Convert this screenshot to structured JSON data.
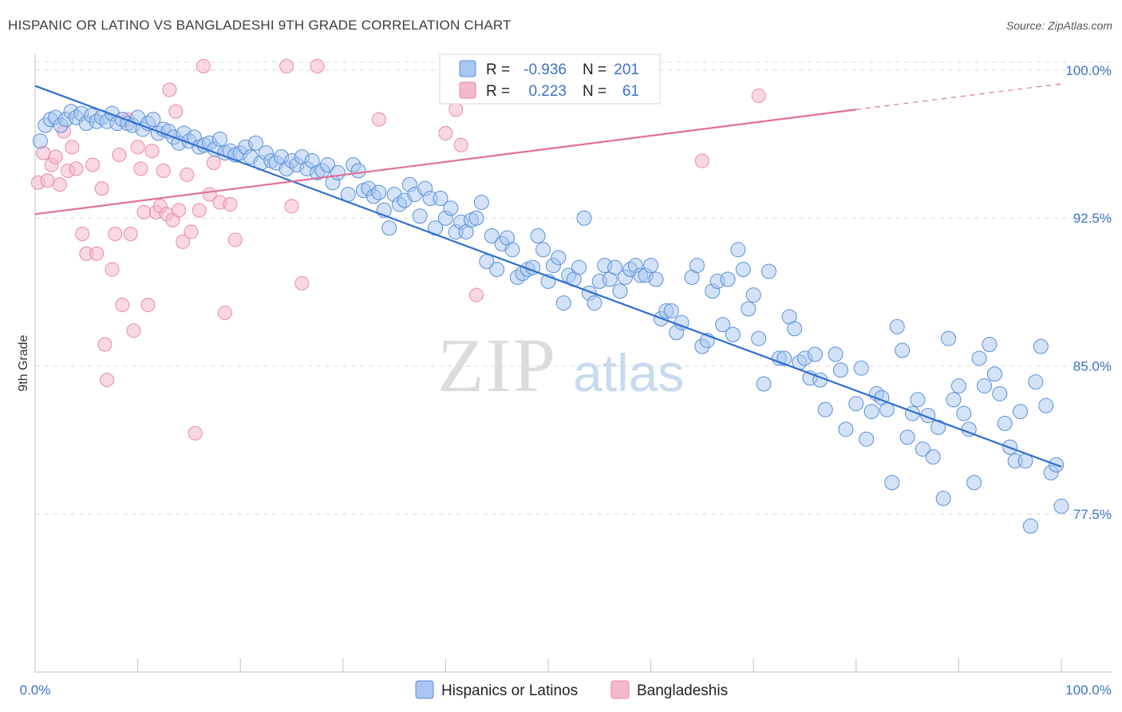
{
  "title": "HISPANIC OR LATINO VS BANGLADESHI 9TH GRADE CORRELATION CHART",
  "source": "Source: ZipAtlas.com",
  "watermark": {
    "zip": "ZIP",
    "atlas": "atlas"
  },
  "colors": {
    "blue_fill": "#a8c6f0",
    "blue_stroke": "#5a8fd8",
    "blue_line": "#2f6fd1",
    "pink_fill": "#f5b8cc",
    "pink_stroke": "#e68aa8",
    "pink_line": "#e0709a",
    "axis_text": "#3e72c8",
    "grid": "#d9d9d9"
  },
  "legend": {
    "rows": [
      {
        "r_label": "R =",
        "r_value": "-0.936",
        "n_label": "N =",
        "n_value": "201"
      },
      {
        "r_label": "R =",
        "r_value": "0.223",
        "n_label": "N =",
        "n_value": "61"
      }
    ]
  },
  "bottom_legend": [
    "Hispanics or Latinos",
    "Bangladeshis"
  ],
  "chart_data": {
    "type": "scatter",
    "title": "HISPANIC OR LATINO VS BANGLADESHI 9TH GRADE CORRELATION CHART",
    "xlabel": "",
    "ylabel": "9th Grade",
    "x_ticks": [
      "0.0%",
      "100.0%"
    ],
    "y_ticks": [
      "100.0%",
      "92.5%",
      "85.0%",
      "77.5%"
    ],
    "y_tick_values": [
      100.0,
      92.5,
      85.0,
      77.5
    ],
    "xlim": [
      0,
      100
    ],
    "ylim": [
      69.5,
      100.8
    ],
    "grid": true,
    "legend_position": "top-center",
    "series": [
      {
        "name": "Hispanics or Latinos",
        "trend": {
          "x": [
            0,
            100
          ],
          "y": [
            99.2,
            79.9
          ]
        },
        "points": [
          [
            0.5,
            96.4
          ],
          [
            1.0,
            97.2
          ],
          [
            1.5,
            97.5
          ],
          [
            2.0,
            97.6
          ],
          [
            2.5,
            97.2
          ],
          [
            3.0,
            97.5
          ],
          [
            3.5,
            97.9
          ],
          [
            4.0,
            97.6
          ],
          [
            4.5,
            97.8
          ],
          [
            5.0,
            97.3
          ],
          [
            5.5,
            97.7
          ],
          [
            6.0,
            97.4
          ],
          [
            6.5,
            97.6
          ],
          [
            7.0,
            97.4
          ],
          [
            7.5,
            97.8
          ],
          [
            8.0,
            97.3
          ],
          [
            8.5,
            97.5
          ],
          [
            9.0,
            97.3
          ],
          [
            9.5,
            97.2
          ],
          [
            10.0,
            97.6
          ],
          [
            10.5,
            97.0
          ],
          [
            11.0,
            97.3
          ],
          [
            11.5,
            97.5
          ],
          [
            12.0,
            96.8
          ],
          [
            12.5,
            97.0
          ],
          [
            13.0,
            96.9
          ],
          [
            13.5,
            96.6
          ],
          [
            14.0,
            96.3
          ],
          [
            14.5,
            96.8
          ],
          [
            15.0,
            96.4
          ],
          [
            15.5,
            96.6
          ],
          [
            16.0,
            96.1
          ],
          [
            16.5,
            96.2
          ],
          [
            17.0,
            96.3
          ],
          [
            17.5,
            96.0
          ],
          [
            18.0,
            96.5
          ],
          [
            18.5,
            95.8
          ],
          [
            19.0,
            95.9
          ],
          [
            19.5,
            95.7
          ],
          [
            20.0,
            95.8
          ],
          [
            20.5,
            96.1
          ],
          [
            21.0,
            95.6
          ],
          [
            21.5,
            96.3
          ],
          [
            22.0,
            95.3
          ],
          [
            22.5,
            95.8
          ],
          [
            23.0,
            95.4
          ],
          [
            23.5,
            95.3
          ],
          [
            24.0,
            95.6
          ],
          [
            24.5,
            95.0
          ],
          [
            25.0,
            95.4
          ],
          [
            25.5,
            95.2
          ],
          [
            26.0,
            95.6
          ],
          [
            26.5,
            95.0
          ],
          [
            27.0,
            95.4
          ],
          [
            27.5,
            94.8
          ],
          [
            28.0,
            94.9
          ],
          [
            28.5,
            95.2
          ],
          [
            29.0,
            94.3
          ],
          [
            29.5,
            94.8
          ],
          [
            30.5,
            93.7
          ],
          [
            31.0,
            95.2
          ],
          [
            31.5,
            94.9
          ],
          [
            32.0,
            93.9
          ],
          [
            32.5,
            94.0
          ],
          [
            33.0,
            93.6
          ],
          [
            33.5,
            93.8
          ],
          [
            34.0,
            92.9
          ],
          [
            34.5,
            92.0
          ],
          [
            35.0,
            93.7
          ],
          [
            35.5,
            93.2
          ],
          [
            36.0,
            93.4
          ],
          [
            36.5,
            94.2
          ],
          [
            37.0,
            93.7
          ],
          [
            37.5,
            92.6
          ],
          [
            38.0,
            94.0
          ],
          [
            38.5,
            93.5
          ],
          [
            39.0,
            92.0
          ],
          [
            39.5,
            93.5
          ],
          [
            40.0,
            92.5
          ],
          [
            40.5,
            93.0
          ],
          [
            41.0,
            91.8
          ],
          [
            41.5,
            92.3
          ],
          [
            42.0,
            91.8
          ],
          [
            42.5,
            92.4
          ],
          [
            43.0,
            92.5
          ],
          [
            43.5,
            93.3
          ],
          [
            44.0,
            90.3
          ],
          [
            44.5,
            91.6
          ],
          [
            45.0,
            89.9
          ],
          [
            45.5,
            91.2
          ],
          [
            46.0,
            91.5
          ],
          [
            46.5,
            90.9
          ],
          [
            47.0,
            89.5
          ],
          [
            47.5,
            89.7
          ],
          [
            48.0,
            89.9
          ],
          [
            48.5,
            90.0
          ],
          [
            49.0,
            91.6
          ],
          [
            49.5,
            90.9
          ],
          [
            50.0,
            89.3
          ],
          [
            50.5,
            90.1
          ],
          [
            51.0,
            90.5
          ],
          [
            51.5,
            88.2
          ],
          [
            52.0,
            89.6
          ],
          [
            52.5,
            89.4
          ],
          [
            53.0,
            90.0
          ],
          [
            53.5,
            92.5
          ],
          [
            54.0,
            88.7
          ],
          [
            54.5,
            88.2
          ],
          [
            55.0,
            89.3
          ],
          [
            55.5,
            90.1
          ],
          [
            56.0,
            89.4
          ],
          [
            56.5,
            90.0
          ],
          [
            57.0,
            88.8
          ],
          [
            57.5,
            89.5
          ],
          [
            58.0,
            89.9
          ],
          [
            58.5,
            90.1
          ],
          [
            59.0,
            89.6
          ],
          [
            59.5,
            89.6
          ],
          [
            60.0,
            90.1
          ],
          [
            60.5,
            89.4
          ],
          [
            61.0,
            87.4
          ],
          [
            61.5,
            87.8
          ],
          [
            62.0,
            87.8
          ],
          [
            62.5,
            86.7
          ],
          [
            63.0,
            87.2
          ],
          [
            64.0,
            89.5
          ],
          [
            64.5,
            90.1
          ],
          [
            65.0,
            86.0
          ],
          [
            65.5,
            86.3
          ],
          [
            66.0,
            88.8
          ],
          [
            66.5,
            89.3
          ],
          [
            67.0,
            87.1
          ],
          [
            67.5,
            89.4
          ],
          [
            68.0,
            86.6
          ],
          [
            68.5,
            90.9
          ],
          [
            69.0,
            89.9
          ],
          [
            69.5,
            87.9
          ],
          [
            70.0,
            88.6
          ],
          [
            70.5,
            86.4
          ],
          [
            71.0,
            84.1
          ],
          [
            71.5,
            89.8
          ],
          [
            72.5,
            85.4
          ],
          [
            73.0,
            85.4
          ],
          [
            73.5,
            87.5
          ],
          [
            74.0,
            86.9
          ],
          [
            74.5,
            85.2
          ],
          [
            75.0,
            85.4
          ],
          [
            75.5,
            84.4
          ],
          [
            76.0,
            85.6
          ],
          [
            76.5,
            84.3
          ],
          [
            77.0,
            82.8
          ],
          [
            78.0,
            85.6
          ],
          [
            78.5,
            84.8
          ],
          [
            79.0,
            81.8
          ],
          [
            80.0,
            83.1
          ],
          [
            80.5,
            84.9
          ],
          [
            81.0,
            81.3
          ],
          [
            81.5,
            82.7
          ],
          [
            82.0,
            83.6
          ],
          [
            82.5,
            83.4
          ],
          [
            83.0,
            82.8
          ],
          [
            83.5,
            79.1
          ],
          [
            84.0,
            87.0
          ],
          [
            84.5,
            85.8
          ],
          [
            85.0,
            81.4
          ],
          [
            85.5,
            82.6
          ],
          [
            86.0,
            83.3
          ],
          [
            86.5,
            80.8
          ],
          [
            87.0,
            82.5
          ],
          [
            87.5,
            80.4
          ],
          [
            88.0,
            81.9
          ],
          [
            88.5,
            78.3
          ],
          [
            89.0,
            86.4
          ],
          [
            89.5,
            83.3
          ],
          [
            90.0,
            84.0
          ],
          [
            90.5,
            82.6
          ],
          [
            91.0,
            81.8
          ],
          [
            91.5,
            79.1
          ],
          [
            92.0,
            85.4
          ],
          [
            92.5,
            84.0
          ],
          [
            93.0,
            86.1
          ],
          [
            93.5,
            84.6
          ],
          [
            94.0,
            83.6
          ],
          [
            94.5,
            82.1
          ],
          [
            95.0,
            80.9
          ],
          [
            95.5,
            80.2
          ],
          [
            96.0,
            82.7
          ],
          [
            96.5,
            80.2
          ],
          [
            97.0,
            76.9
          ],
          [
            97.5,
            84.2
          ],
          [
            98.0,
            86.0
          ],
          [
            98.5,
            83.0
          ],
          [
            99.0,
            79.6
          ],
          [
            99.5,
            80.0
          ],
          [
            100.0,
            77.9
          ]
        ]
      },
      {
        "name": "Bangladeshis",
        "trend": {
          "x": [
            0,
            80
          ],
          "y": [
            92.7,
            98.0
          ]
        },
        "trend_dashed_to": {
          "x": 100,
          "y": 99.3
        },
        "points": [
          [
            0.3,
            94.3
          ],
          [
            0.8,
            95.8
          ],
          [
            1.2,
            94.4
          ],
          [
            1.6,
            95.2
          ],
          [
            2.0,
            95.6
          ],
          [
            2.4,
            94.2
          ],
          [
            2.8,
            96.9
          ],
          [
            3.2,
            94.9
          ],
          [
            3.6,
            96.1
          ],
          [
            4.0,
            95.0
          ],
          [
            4.6,
            91.7
          ],
          [
            5.0,
            90.7
          ],
          [
            5.6,
            95.2
          ],
          [
            6.0,
            90.7
          ],
          [
            6.5,
            94.0
          ],
          [
            6.8,
            86.1
          ],
          [
            7.0,
            84.3
          ],
          [
            7.5,
            89.9
          ],
          [
            7.8,
            91.7
          ],
          [
            8.2,
            95.7
          ],
          [
            8.5,
            88.1
          ],
          [
            9.0,
            97.5
          ],
          [
            9.3,
            91.7
          ],
          [
            9.6,
            86.8
          ],
          [
            10.0,
            96.1
          ],
          [
            10.3,
            95.0
          ],
          [
            10.6,
            92.8
          ],
          [
            11.0,
            88.1
          ],
          [
            11.4,
            95.9
          ],
          [
            11.8,
            92.8
          ],
          [
            12.2,
            93.1
          ],
          [
            12.5,
            94.9
          ],
          [
            12.8,
            92.7
          ],
          [
            13.1,
            99.0
          ],
          [
            13.4,
            92.4
          ],
          [
            13.7,
            97.9
          ],
          [
            14.0,
            92.9
          ],
          [
            14.4,
            91.3
          ],
          [
            14.8,
            94.7
          ],
          [
            15.2,
            91.8
          ],
          [
            15.6,
            81.6
          ],
          [
            16.0,
            92.9
          ],
          [
            16.4,
            100.2
          ],
          [
            17.0,
            93.7
          ],
          [
            17.4,
            95.3
          ],
          [
            18.0,
            93.3
          ],
          [
            18.5,
            87.7
          ],
          [
            19.0,
            93.2
          ],
          [
            19.5,
            91.4
          ],
          [
            24.5,
            100.2
          ],
          [
            25.0,
            93.1
          ],
          [
            26.0,
            89.2
          ],
          [
            27.5,
            100.2
          ],
          [
            33.5,
            97.5
          ],
          [
            40.0,
            96.8
          ],
          [
            41.0,
            98.0
          ],
          [
            41.5,
            96.2
          ],
          [
            43.0,
            88.6
          ],
          [
            55.0,
            100.2
          ],
          [
            65.0,
            95.4
          ],
          [
            70.5,
            98.7
          ]
        ]
      }
    ]
  }
}
